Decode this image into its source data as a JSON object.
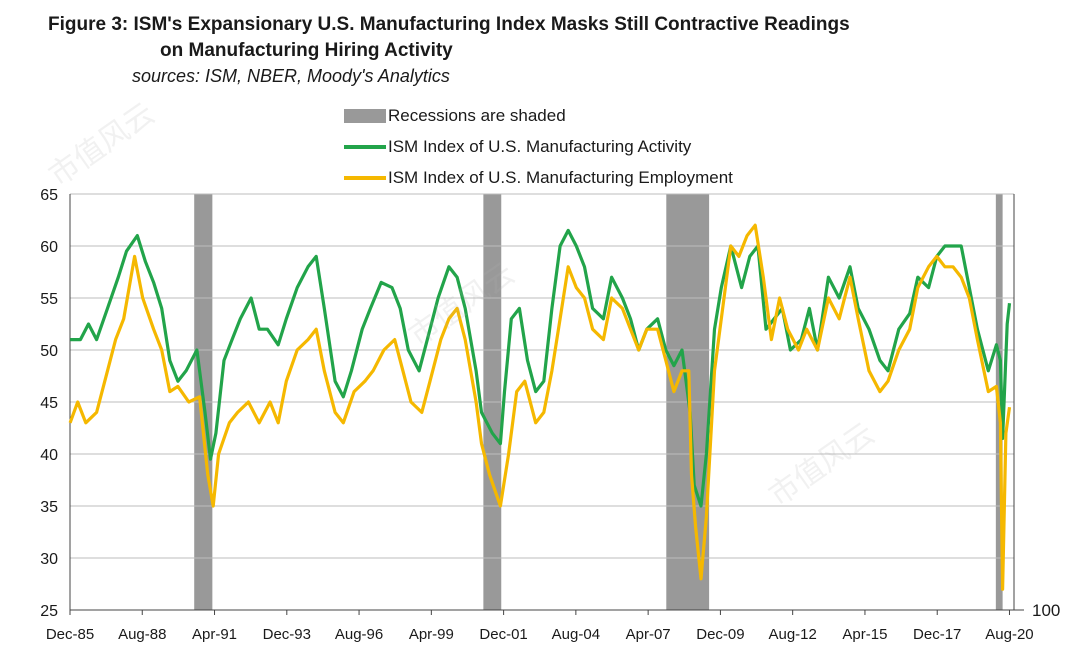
{
  "header": {
    "title_line1": "Figure 3: ISM's Expansionary U.S. Manufacturing Index Masks Still Contractive Readings",
    "title_line2": "on Manufacturing Hiring Activity",
    "source": "sources: ISM, NBER, Moody's Analytics"
  },
  "legend": {
    "recession": "Recessions are shaded",
    "activity": "ISM Index of U.S. Manufacturing Activity",
    "employment": "ISM Index of U.S. Manufacturing Employment"
  },
  "watermark": "市值风云",
  "colors": {
    "activity": "#22a44a",
    "employment": "#f5b800",
    "recession": "#999999",
    "grid": "#bdbdbd"
  },
  "chart_data": {
    "type": "line",
    "ylim": [
      25,
      65
    ],
    "yticks": [
      "25",
      "30",
      "35",
      "40",
      "45",
      "50",
      "55",
      "60",
      "65"
    ],
    "y2_label": "100",
    "xlim": [
      1985.917,
      2020.75
    ],
    "xticks": [
      {
        "label": "Dec-85",
        "x": 1985.917
      },
      {
        "label": "Aug-88",
        "x": 1988.583
      },
      {
        "label": "Apr-91",
        "x": 1991.25
      },
      {
        "label": "Dec-93",
        "x": 1993.917
      },
      {
        "label": "Aug-96",
        "x": 1996.583
      },
      {
        "label": "Apr-99",
        "x": 1999.25
      },
      {
        "label": "Dec-01",
        "x": 2001.917
      },
      {
        "label": "Aug-04",
        "x": 2004.583
      },
      {
        "label": "Apr-07",
        "x": 2007.25
      },
      {
        "label": "Dec-09",
        "x": 2009.917
      },
      {
        "label": "Aug-12",
        "x": 2012.583
      },
      {
        "label": "Apr-15",
        "x": 2015.25
      },
      {
        "label": "Dec-17",
        "x": 2017.917
      },
      {
        "label": "Aug-20",
        "x": 2020.583
      }
    ],
    "recessions": [
      [
        1990.5,
        1991.17
      ],
      [
        2001.17,
        2001.83
      ],
      [
        2007.92,
        2009.5
      ],
      [
        2020.08,
        2020.33
      ]
    ],
    "series": [
      {
        "name": "ISM Index of U.S. Manufacturing Activity",
        "points": [
          [
            1985.92,
            51
          ],
          [
            1986.3,
            51
          ],
          [
            1986.6,
            52.5
          ],
          [
            1986.9,
            51
          ],
          [
            1987.3,
            54
          ],
          [
            1987.7,
            57
          ],
          [
            1988.0,
            59.5
          ],
          [
            1988.4,
            61
          ],
          [
            1988.7,
            58.5
          ],
          [
            1989.0,
            56.5
          ],
          [
            1989.3,
            54
          ],
          [
            1989.6,
            49
          ],
          [
            1989.9,
            47
          ],
          [
            1990.2,
            48
          ],
          [
            1990.6,
            50
          ],
          [
            1990.9,
            44
          ],
          [
            1991.1,
            39.5
          ],
          [
            1991.3,
            42
          ],
          [
            1991.6,
            49
          ],
          [
            1991.9,
            51
          ],
          [
            1992.2,
            53
          ],
          [
            1992.6,
            55
          ],
          [
            1992.9,
            52
          ],
          [
            1993.2,
            52
          ],
          [
            1993.6,
            50.5
          ],
          [
            1993.9,
            53
          ],
          [
            1994.3,
            56
          ],
          [
            1994.7,
            58
          ],
          [
            1995.0,
            59
          ],
          [
            1995.3,
            54
          ],
          [
            1995.7,
            47
          ],
          [
            1996.0,
            45.5
          ],
          [
            1996.3,
            48
          ],
          [
            1996.7,
            52
          ],
          [
            1997.0,
            54
          ],
          [
            1997.4,
            56.5
          ],
          [
            1997.8,
            56
          ],
          [
            1998.1,
            54
          ],
          [
            1998.4,
            50
          ],
          [
            1998.8,
            48
          ],
          [
            1999.1,
            51
          ],
          [
            1999.5,
            55
          ],
          [
            1999.9,
            58
          ],
          [
            2000.2,
            57
          ],
          [
            2000.5,
            54
          ],
          [
            2000.9,
            48
          ],
          [
            2001.1,
            44
          ],
          [
            2001.5,
            42
          ],
          [
            2001.8,
            41
          ],
          [
            2001.95,
            46
          ],
          [
            2002.2,
            53
          ],
          [
            2002.5,
            54
          ],
          [
            2002.8,
            49
          ],
          [
            2003.1,
            46
          ],
          [
            2003.4,
            47
          ],
          [
            2003.7,
            54
          ],
          [
            2004.0,
            60
          ],
          [
            2004.3,
            61.5
          ],
          [
            2004.6,
            60
          ],
          [
            2004.9,
            58
          ],
          [
            2005.2,
            54
          ],
          [
            2005.6,
            53
          ],
          [
            2005.9,
            57
          ],
          [
            2006.3,
            55
          ],
          [
            2006.6,
            53
          ],
          [
            2006.9,
            50
          ],
          [
            2007.2,
            52
          ],
          [
            2007.6,
            53
          ],
          [
            2007.9,
            50
          ],
          [
            2008.2,
            48.5
          ],
          [
            2008.5,
            50
          ],
          [
            2008.8,
            44
          ],
          [
            2008.95,
            37
          ],
          [
            2009.2,
            35
          ],
          [
            2009.4,
            40
          ],
          [
            2009.7,
            52
          ],
          [
            2009.95,
            56
          ],
          [
            2010.3,
            60
          ],
          [
            2010.7,
            56
          ],
          [
            2011.0,
            59
          ],
          [
            2011.3,
            60
          ],
          [
            2011.6,
            52
          ],
          [
            2011.9,
            53
          ],
          [
            2012.2,
            54
          ],
          [
            2012.5,
            50
          ],
          [
            2012.9,
            51
          ],
          [
            2013.2,
            54
          ],
          [
            2013.5,
            50
          ],
          [
            2013.9,
            57
          ],
          [
            2014.3,
            55
          ],
          [
            2014.7,
            58
          ],
          [
            2015.0,
            54
          ],
          [
            2015.4,
            52
          ],
          [
            2015.8,
            49
          ],
          [
            2016.1,
            48
          ],
          [
            2016.5,
            52
          ],
          [
            2016.9,
            53.5
          ],
          [
            2017.2,
            57
          ],
          [
            2017.6,
            56
          ],
          [
            2017.9,
            59
          ],
          [
            2018.2,
            60
          ],
          [
            2018.5,
            60
          ],
          [
            2018.8,
            60
          ],
          [
            2019.1,
            56
          ],
          [
            2019.4,
            52
          ],
          [
            2019.8,
            48
          ],
          [
            2020.1,
            50.5
          ],
          [
            2020.25,
            49
          ],
          [
            2020.33,
            41.5
          ],
          [
            2020.5,
            52.5
          ],
          [
            2020.583,
            54.5
          ]
        ]
      },
      {
        "name": "ISM Index of U.S. Manufacturing Employment",
        "points": [
          [
            1985.92,
            43
          ],
          [
            1986.2,
            45
          ],
          [
            1986.5,
            43
          ],
          [
            1986.9,
            44
          ],
          [
            1987.3,
            48
          ],
          [
            1987.6,
            51
          ],
          [
            1987.9,
            53
          ],
          [
            1988.3,
            59
          ],
          [
            1988.6,
            55
          ],
          [
            1989.0,
            52
          ],
          [
            1989.3,
            50
          ],
          [
            1989.6,
            46
          ],
          [
            1989.9,
            46.5
          ],
          [
            1990.3,
            45
          ],
          [
            1990.7,
            45.5
          ],
          [
            1991.0,
            38
          ],
          [
            1991.2,
            35
          ],
          [
            1991.4,
            40
          ],
          [
            1991.8,
            43
          ],
          [
            1992.1,
            44
          ],
          [
            1992.5,
            45
          ],
          [
            1992.9,
            43
          ],
          [
            1993.3,
            45
          ],
          [
            1993.6,
            43
          ],
          [
            1993.9,
            47
          ],
          [
            1994.3,
            50
          ],
          [
            1994.7,
            51
          ],
          [
            1995.0,
            52
          ],
          [
            1995.3,
            48
          ],
          [
            1995.7,
            44
          ],
          [
            1996.0,
            43
          ],
          [
            1996.4,
            46
          ],
          [
            1996.8,
            47
          ],
          [
            1997.1,
            48
          ],
          [
            1997.5,
            50
          ],
          [
            1997.9,
            51
          ],
          [
            1998.2,
            48
          ],
          [
            1998.5,
            45
          ],
          [
            1998.9,
            44
          ],
          [
            1999.2,
            47
          ],
          [
            1999.6,
            51
          ],
          [
            1999.9,
            53
          ],
          [
            2000.2,
            54
          ],
          [
            2000.5,
            51
          ],
          [
            2000.9,
            45
          ],
          [
            2001.1,
            41
          ],
          [
            2001.4,
            38
          ],
          [
            2001.8,
            35
          ],
          [
            2002.1,
            40
          ],
          [
            2002.4,
            46
          ],
          [
            2002.7,
            47
          ],
          [
            2003.1,
            43
          ],
          [
            2003.4,
            44
          ],
          [
            2003.7,
            48
          ],
          [
            2004.0,
            53
          ],
          [
            2004.3,
            58
          ],
          [
            2004.6,
            56
          ],
          [
            2004.9,
            55
          ],
          [
            2005.2,
            52
          ],
          [
            2005.6,
            51
          ],
          [
            2005.9,
            55
          ],
          [
            2006.3,
            54
          ],
          [
            2006.6,
            52
          ],
          [
            2006.9,
            50
          ],
          [
            2007.2,
            52
          ],
          [
            2007.6,
            52
          ],
          [
            2007.9,
            49
          ],
          [
            2008.2,
            46
          ],
          [
            2008.5,
            48
          ],
          [
            2008.75,
            48
          ],
          [
            2008.85,
            38
          ],
          [
            2009.0,
            33
          ],
          [
            2009.2,
            28
          ],
          [
            2009.4,
            34
          ],
          [
            2009.7,
            48
          ],
          [
            2009.95,
            53
          ],
          [
            2010.3,
            60
          ],
          [
            2010.6,
            59
          ],
          [
            2010.9,
            61
          ],
          [
            2011.2,
            62
          ],
          [
            2011.5,
            57
          ],
          [
            2011.8,
            51
          ],
          [
            2012.1,
            55
          ],
          [
            2012.4,
            52
          ],
          [
            2012.8,
            50
          ],
          [
            2013.1,
            52
          ],
          [
            2013.5,
            50
          ],
          [
            2013.9,
            55
          ],
          [
            2014.3,
            53
          ],
          [
            2014.7,
            57
          ],
          [
            2015.0,
            53
          ],
          [
            2015.4,
            48
          ],
          [
            2015.8,
            46
          ],
          [
            2016.1,
            47
          ],
          [
            2016.5,
            50
          ],
          [
            2016.9,
            52
          ],
          [
            2017.2,
            56
          ],
          [
            2017.6,
            58
          ],
          [
            2017.9,
            59
          ],
          [
            2018.2,
            58
          ],
          [
            2018.5,
            58
          ],
          [
            2018.8,
            57
          ],
          [
            2019.1,
            55
          ],
          [
            2019.4,
            51
          ],
          [
            2019.8,
            46
          ],
          [
            2020.1,
            46.5
          ],
          [
            2020.25,
            43
          ],
          [
            2020.33,
            27
          ],
          [
            2020.45,
            42
          ],
          [
            2020.583,
            44.5
          ]
        ]
      }
    ]
  }
}
